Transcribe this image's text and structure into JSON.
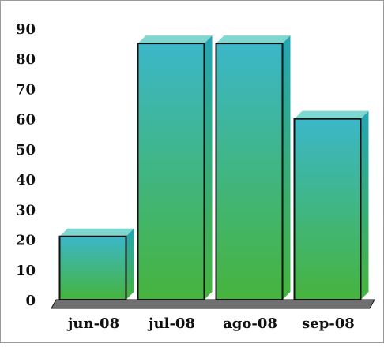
{
  "chart_data": {
    "type": "bar",
    "title": "",
    "xlabel": "",
    "ylabel": "",
    "categories": [
      "jun-08",
      "jul-08",
      "ago-08",
      "sep-08"
    ],
    "values": [
      21,
      85,
      85,
      60
    ],
    "ylim": [
      0,
      90
    ],
    "yticks": [
      "0",
      "10",
      "20",
      "30",
      "40",
      "50",
      "60",
      "70",
      "80",
      "90"
    ],
    "grid": false,
    "legend": "none",
    "colors": {
      "bar_top": "#3bb7c9",
      "bar_bottom": "#46b43c",
      "bar_side": "#24a5b6",
      "bar_cap": "#7ed8cf",
      "bar_edge": "#111111",
      "floor": "#6f6f6f"
    }
  }
}
